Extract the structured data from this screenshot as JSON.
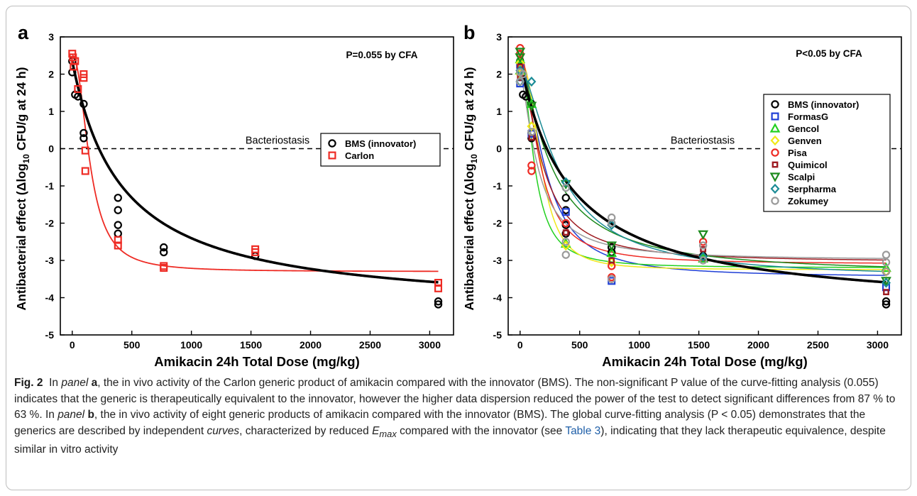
{
  "chart_data": [
    {
      "type": "scatter",
      "panel_label": "a",
      "xlabel": "Amikacin 24h Total Dose (mg/kg)",
      "ylabel_pre": "Antibacterial effect (Δlog",
      "ylabel_sub": "10",
      "ylabel_post": " CFU/g at 24 h)",
      "xlim": [
        -100,
        3200
      ],
      "ylim": [
        -5,
        3
      ],
      "xticks": [
        0,
        500,
        1000,
        1500,
        2000,
        2500,
        3000
      ],
      "yticks": [
        -5,
        -4,
        -3,
        -2,
        -1,
        0,
        1,
        2,
        3
      ],
      "annotation": "P=0.055 by CFA",
      "reference_line": {
        "y": 0,
        "label": "Bacteriostasis",
        "style": "dashed"
      },
      "legend_position": "upper-right",
      "series": [
        {
          "name": "BMS (innovator)",
          "marker": "circle",
          "color": "#000000",
          "points": [
            [
              0,
              2.35
            ],
            [
              0,
              2.05
            ],
            [
              24,
              1.45
            ],
            [
              48,
              1.4
            ],
            [
              96,
              1.2
            ],
            [
              96,
              0.42
            ],
            [
              96,
              0.28
            ],
            [
              384,
              -1.32
            ],
            [
              384,
              -1.65
            ],
            [
              384,
              -2.05
            ],
            [
              384,
              -2.28
            ],
            [
              768,
              -2.65
            ],
            [
              768,
              -2.78
            ],
            [
              1536,
              -2.88
            ],
            [
              3072,
              -4.1
            ],
            [
              3072,
              -4.18
            ]
          ],
          "fit": {
            "model": "emax",
            "e0": 2.35,
            "emax": 6.75,
            "ed50": 420,
            "hill": 1.0
          }
        },
        {
          "name": "Carlon",
          "marker": "square",
          "color": "#ee2b24",
          "points": [
            [
              0,
              2.55
            ],
            [
              6,
              2.45
            ],
            [
              12,
              2.2
            ],
            [
              24,
              2.35
            ],
            [
              48,
              1.6
            ],
            [
              96,
              2.0
            ],
            [
              96,
              1.9
            ],
            [
              110,
              -0.05
            ],
            [
              110,
              -0.6
            ],
            [
              384,
              -2.45
            ],
            [
              384,
              -2.6
            ],
            [
              768,
              -3.15
            ],
            [
              768,
              -3.2
            ],
            [
              1536,
              -2.7
            ],
            [
              1536,
              -2.78
            ],
            [
              3072,
              -3.6
            ],
            [
              3072,
              -3.75
            ]
          ],
          "fit": {
            "model": "emax",
            "e0": 2.5,
            "emax": 5.8,
            "ed50": 150,
            "hill": 2.2
          }
        }
      ]
    },
    {
      "type": "scatter",
      "panel_label": "b",
      "xlabel": "Amikacin 24h Total Dose (mg/kg)",
      "ylabel_pre": "Antibacterial effect (Δlog",
      "ylabel_sub": "10",
      "ylabel_post": " CFU/g at 24 h)",
      "xlim": [
        -100,
        3200
      ],
      "ylim": [
        -5,
        3
      ],
      "xticks": [
        0,
        500,
        1000,
        1500,
        2000,
        2500,
        3000
      ],
      "yticks": [
        -5,
        -4,
        -3,
        -2,
        -1,
        0,
        1,
        2,
        3
      ],
      "annotation": "P<0.05 by CFA",
      "reference_line": {
        "y": 0,
        "label": "Bacteriostasis",
        "style": "dashed"
      },
      "legend_position": "upper-right",
      "series": [
        {
          "name": "BMS (innovator)",
          "marker": "circle",
          "color": "#000000",
          "points": [
            [
              0,
              2.35
            ],
            [
              0,
              2.05
            ],
            [
              24,
              1.45
            ],
            [
              48,
              1.4
            ],
            [
              96,
              1.2
            ],
            [
              96,
              0.42
            ],
            [
              96,
              0.28
            ],
            [
              384,
              -1.32
            ],
            [
              384,
              -1.65
            ],
            [
              384,
              -2.05
            ],
            [
              384,
              -2.28
            ],
            [
              768,
              -2.65
            ],
            [
              768,
              -2.78
            ],
            [
              1536,
              -2.88
            ],
            [
              3072,
              -4.1
            ],
            [
              3072,
              -4.18
            ]
          ],
          "fit": {
            "model": "emax",
            "e0": 2.35,
            "emax": 6.75,
            "ed50": 420,
            "hill": 1.0
          }
        },
        {
          "name": "FormasG",
          "marker": "square",
          "color": "#1f3fd6",
          "points": [
            [
              0,
              1.75
            ],
            [
              0,
              2.25
            ],
            [
              96,
              0.4
            ],
            [
              384,
              -1.7
            ],
            [
              768,
              -3.55
            ],
            [
              3072,
              -3.72
            ]
          ],
          "fit": {
            "model": "emax",
            "e0": 2.2,
            "emax": 5.65,
            "ed50": 220,
            "hill": 1.8
          }
        },
        {
          "name": "Gencol",
          "marker": "triangle-up",
          "color": "#22d020",
          "points": [
            [
              0,
              2.4
            ],
            [
              0,
              2.1
            ],
            [
              96,
              1.2
            ],
            [
              384,
              -2.55
            ],
            [
              768,
              -2.8
            ],
            [
              1536,
              -2.95
            ],
            [
              3072,
              -3.2
            ]
          ],
          "fit": {
            "model": "emax",
            "e0": 2.4,
            "emax": 5.6,
            "ed50": 120,
            "hill": 1.9
          }
        },
        {
          "name": "Genven",
          "marker": "diamond",
          "color": "#f0e818",
          "points": [
            [
              0,
              2.3
            ],
            [
              0,
              2.0
            ],
            [
              96,
              0.6
            ],
            [
              384,
              -2.6
            ],
            [
              768,
              -3.05
            ],
            [
              3072,
              -3.3
            ]
          ],
          "fit": {
            "model": "emax",
            "e0": 2.3,
            "emax": 5.55,
            "ed50": 180,
            "hill": 2.5
          }
        },
        {
          "name": "Pisa",
          "marker": "circle",
          "color": "#ee2b24",
          "points": [
            [
              0,
              2.7
            ],
            [
              0,
              2.55
            ],
            [
              96,
              -0.45
            ],
            [
              96,
              -0.6
            ],
            [
              384,
              -2.0
            ],
            [
              768,
              -3.15
            ],
            [
              768,
              -3.45
            ],
            [
              1536,
              -2.5
            ],
            [
              3072,
              -3.3
            ]
          ],
          "fit": {
            "model": "emax",
            "e0": 2.6,
            "emax": 5.7,
            "ed50": 160,
            "hill": 1.8
          }
        },
        {
          "name": "Quimicol",
          "marker": "square-small",
          "color": "#9e1c22",
          "points": [
            [
              0,
              2.2
            ],
            [
              0,
              1.9
            ],
            [
              96,
              0.3
            ],
            [
              384,
              -2.25
            ],
            [
              768,
              -3.0
            ],
            [
              1536,
              -2.7
            ],
            [
              3072,
              -3.85
            ]
          ],
          "fit": {
            "model": "emax",
            "e0": 2.2,
            "emax": 5.25,
            "ed50": 190,
            "hill": 1.6
          }
        },
        {
          "name": "Scalpi",
          "marker": "triangle-down",
          "color": "#1c8a1c",
          "points": [
            [
              0,
              2.6
            ],
            [
              0,
              2.45
            ],
            [
              96,
              1.15
            ],
            [
              384,
              -0.95
            ],
            [
              768,
              -2.6
            ],
            [
              1536,
              -2.3
            ],
            [
              3072,
              -3.55
            ]
          ],
          "fit": {
            "model": "emax",
            "e0": 2.5,
            "emax": 5.9,
            "ed50": 260,
            "hill": 1.3
          }
        },
        {
          "name": "Serpharma",
          "marker": "diamond",
          "color": "#1c8c96",
          "points": [
            [
              0,
              2.1
            ],
            [
              0,
              1.8
            ],
            [
              96,
              1.8
            ],
            [
              384,
              -0.9
            ],
            [
              768,
              -2.05
            ],
            [
              1536,
              -2.9
            ],
            [
              3072,
              -3.6
            ]
          ],
          "fit": {
            "model": "emax",
            "e0": 2.2,
            "emax": 5.7,
            "ed50": 340,
            "hill": 1.5
          }
        },
        {
          "name": "Zokumey",
          "marker": "circle",
          "color": "#9a9a9a",
          "points": [
            [
              0,
              2.05
            ],
            [
              0,
              1.8
            ],
            [
              24,
              2.0
            ],
            [
              96,
              0.45
            ],
            [
              384,
              -1.05
            ],
            [
              384,
              -2.5
            ],
            [
              384,
              -2.85
            ],
            [
              768,
              -1.85
            ],
            [
              768,
              -2.0
            ],
            [
              768,
              -3.5
            ],
            [
              1536,
              -2.6
            ],
            [
              1536,
              -3.0
            ],
            [
              3072,
              -2.85
            ],
            [
              3072,
              -3.05
            ],
            [
              3072,
              -3.3
            ]
          ],
          "fit": {
            "model": "emax",
            "e0": 2.0,
            "emax": 5.0,
            "ed50": 150,
            "hill": 1.5
          }
        }
      ]
    }
  ],
  "caption": {
    "fig_label": "Fig. 2",
    "text_1": "In ",
    "panel_word_1": "panel",
    "panel_letter_a": "a",
    "text_2": ", the in vivo activity of the Carlon generic product of amikacin compared with the innovator (BMS). The non-significant P value of the curve-fitting analysis (0.055) indicates that the generic is therapeutically equivalent to the innovator, however the higher data dispersion reduced the power of the test to detect significant differences from 87 % to 63 %. In ",
    "panel_word_2": "panel",
    "panel_letter_b": "b",
    "text_3": ", the in vivo activity of eight generic products of amikacin compared with the innovator (BMS). The global curve-fitting analysis (P < 0.05) demonstrates that the generics are described by independent ",
    "curves_word": "curves",
    "text_4": ", characterized by reduced ",
    "emax_base": "E",
    "emax_sub": "max",
    "text_5": " compared with the innovator (see ",
    "table_ref": "Table 3",
    "text_6": "), indicating that they lack therapeutic equivalence, despite similar in vitro activity"
  }
}
